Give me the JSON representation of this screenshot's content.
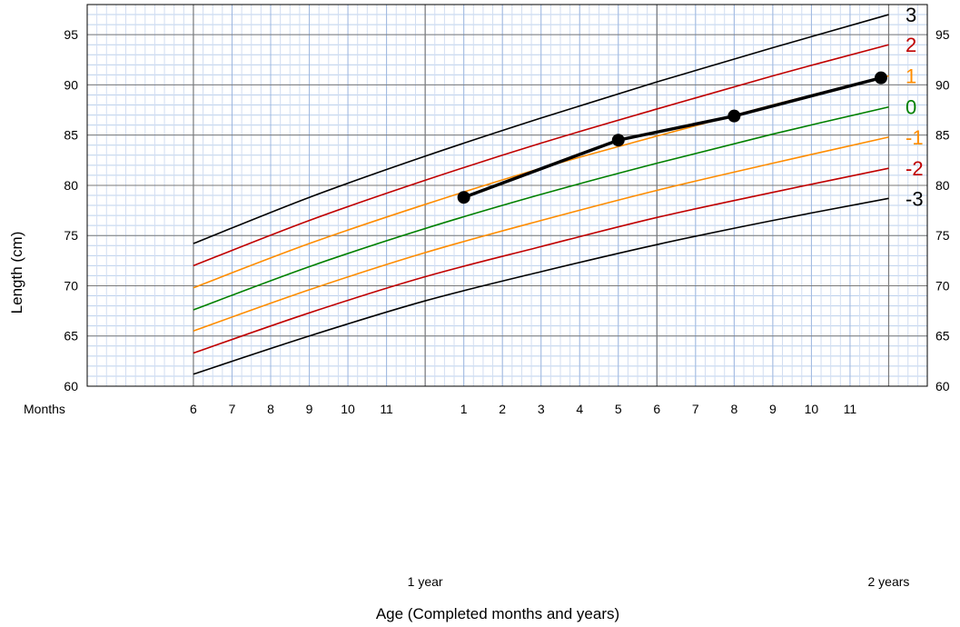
{
  "chart_data": {
    "type": "line",
    "xlabel": "Age (Completed months and years)",
    "ylabel": "Length (cm)",
    "x_unit": "months",
    "xlim": [
      6,
      24
    ],
    "ylim": [
      60,
      98
    ],
    "y_ticks": [
      60,
      65,
      70,
      75,
      80,
      85,
      90,
      95
    ],
    "x_row_label": "Months",
    "x_ticks": [
      {
        "x": 6,
        "label": "6"
      },
      {
        "x": 7,
        "label": "7"
      },
      {
        "x": 8,
        "label": "8"
      },
      {
        "x": 9,
        "label": "9"
      },
      {
        "x": 10,
        "label": "10"
      },
      {
        "x": 11,
        "label": "11"
      },
      {
        "x": 13,
        "label": "1"
      },
      {
        "x": 14,
        "label": "2"
      },
      {
        "x": 15,
        "label": "3"
      },
      {
        "x": 16,
        "label": "4"
      },
      {
        "x": 17,
        "label": "5"
      },
      {
        "x": 18,
        "label": "6"
      },
      {
        "x": 19,
        "label": "7"
      },
      {
        "x": 20,
        "label": "8"
      },
      {
        "x": 21,
        "label": "9"
      },
      {
        "x": 22,
        "label": "10"
      },
      {
        "x": 23,
        "label": "11"
      }
    ],
    "year_labels": [
      {
        "x": 12,
        "label": "1 year"
      },
      {
        "x": 24,
        "label": "2 years"
      }
    ],
    "grid": true,
    "series": [
      {
        "name": "3",
        "color": "#000000",
        "x": [
          6,
          9,
          12,
          15,
          18,
          21,
          24
        ],
        "values": [
          74.2,
          78.8,
          82.9,
          86.7,
          90.3,
          93.7,
          97.0
        ]
      },
      {
        "name": "2",
        "color": "#c00000",
        "x": [
          6,
          9,
          12,
          15,
          18,
          21,
          24
        ],
        "values": [
          72.0,
          76.5,
          80.5,
          84.2,
          87.6,
          90.9,
          94.0
        ]
      },
      {
        "name": "1",
        "color": "#ff8c00",
        "x": [
          6,
          9,
          12,
          15,
          18,
          21,
          24
        ],
        "values": [
          69.8,
          74.2,
          78.1,
          81.7,
          84.9,
          88.0,
          90.9
        ]
      },
      {
        "name": "0",
        "color": "#008000",
        "x": [
          6,
          9,
          12,
          15,
          18,
          21,
          24
        ],
        "values": [
          67.6,
          71.9,
          75.7,
          79.1,
          82.2,
          85.1,
          87.8
        ]
      },
      {
        "name": "-1",
        "color": "#ff8c00",
        "x": [
          6,
          9,
          12,
          15,
          18,
          21,
          24
        ],
        "values": [
          65.5,
          69.6,
          73.3,
          76.5,
          79.5,
          82.2,
          84.8
        ]
      },
      {
        "name": "-2",
        "color": "#c00000",
        "x": [
          6,
          9,
          12,
          15,
          18,
          21,
          24
        ],
        "values": [
          63.3,
          67.3,
          70.9,
          73.9,
          76.8,
          79.3,
          81.7
        ]
      },
      {
        "name": "-3",
        "color": "#000000",
        "x": [
          6,
          9,
          12,
          15,
          18,
          21,
          24
        ],
        "values": [
          61.2,
          65.0,
          68.5,
          71.4,
          74.1,
          76.5,
          78.7
        ]
      }
    ],
    "measurements": {
      "color": "#000000",
      "x": [
        13,
        17,
        20,
        23.8
      ],
      "values": [
        78.8,
        84.5,
        86.9,
        90.7
      ]
    }
  }
}
